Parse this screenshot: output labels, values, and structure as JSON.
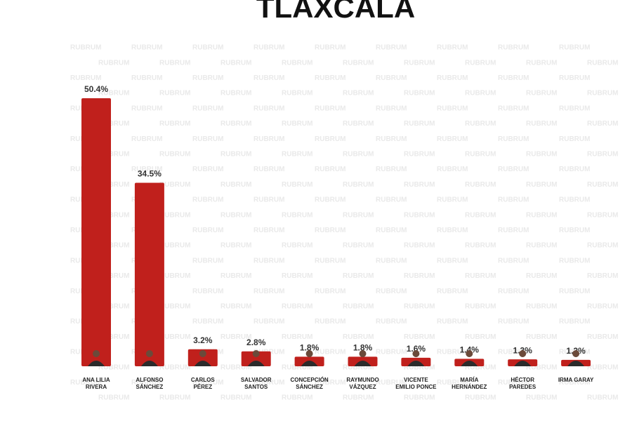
{
  "chart_data": {
    "type": "bar",
    "title": "TLAXCALA",
    "watermark": "RUBRUM",
    "categories": [
      "ANA LILIA\nRIVERA",
      "ALFONSO\nSÁNCHEZ",
      "CARLOS\nPÉREZ",
      "SALVADOR\nSANTOS",
      "CONCEPCIÓN\nSÁNCHEZ",
      "RAYMUNDO\nVÁZQUEZ",
      "VICENTE\nEMILIO PONCE",
      "MARÍA\nHERNÁNDEZ",
      "HÉCTOR\nPAREDES",
      "IRMA GARAY"
    ],
    "values": [
      50.4,
      34.5,
      3.2,
      2.8,
      1.8,
      1.8,
      1.6,
      1.4,
      1.3,
      1.2
    ],
    "value_labels": [
      "50.4%",
      "34.5%",
      "3.2%",
      "2.8%",
      "1.8%",
      "1.8%",
      "1.6%",
      "1.4%",
      "1.3%",
      "1.2%"
    ],
    "color": "#c0201c",
    "ylim": [
      0,
      52
    ]
  }
}
